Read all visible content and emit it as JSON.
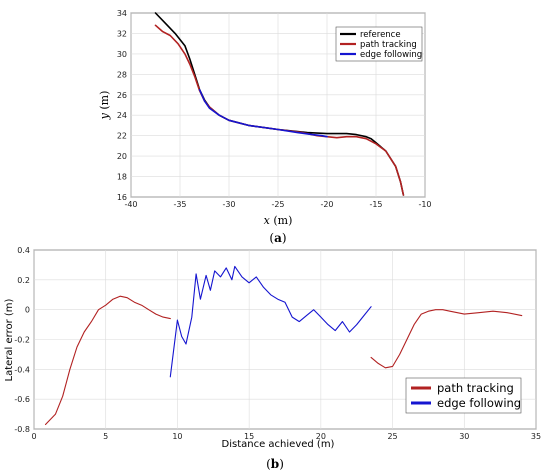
{
  "chart_data": [
    {
      "id": "a",
      "type": "line",
      "caption": "(a)",
      "xlabel": "x (m)",
      "ylabel": "y (m)",
      "xlim": [
        -40,
        -10
      ],
      "ylim": [
        16,
        34
      ],
      "xticks": [
        -40,
        -35,
        -30,
        -25,
        -20,
        -15,
        -10
      ],
      "yticks": [
        16,
        18,
        20,
        22,
        24,
        26,
        28,
        30,
        32,
        34
      ],
      "grid": true,
      "legend_position": "top-right",
      "colors": {
        "reference": "#000000",
        "path_tracking": "#b22222",
        "edge_following": "#1515d0"
      },
      "series": [
        {
          "name": "reference",
          "color": "#000000",
          "x": [
            -37.5,
            -36.5,
            -35.5,
            -34.5,
            -34.0,
            -33.5,
            -33.0,
            -32.5,
            -32.0,
            -31.0,
            -30.0,
            -28.0,
            -25.0,
            -22.0,
            -20.0,
            -18.0,
            -17.0,
            -16.0,
            -15.5,
            -15.0,
            -14.0,
            -13.0,
            -12.5,
            -12.2
          ],
          "y": [
            34.0,
            33.0,
            32.0,
            30.8,
            29.5,
            28.0,
            26.5,
            25.5,
            24.8,
            24.0,
            23.5,
            23.0,
            22.6,
            22.3,
            22.2,
            22.2,
            22.1,
            21.9,
            21.7,
            21.3,
            20.5,
            19.0,
            17.5,
            16.2
          ]
        },
        {
          "name": "path tracking",
          "color": "#b22222",
          "x": [
            -37.5,
            -36.8,
            -36.0,
            -35.2,
            -34.5,
            -34.0,
            -33.5,
            -33.0,
            -32.5,
            -32.0,
            -31.0,
            -30.0,
            -28.0,
            -25.0,
            -22.5,
            -21.0,
            -20.0,
            -19.0,
            -18.0,
            -17.0,
            -16.0,
            -15.0,
            -14.0,
            -13.0,
            -12.5,
            -12.2
          ],
          "y": [
            32.8,
            32.2,
            31.8,
            31.0,
            30.0,
            29.0,
            27.8,
            26.4,
            25.4,
            24.8,
            24.0,
            23.5,
            23.0,
            22.6,
            22.3,
            22.0,
            21.9,
            21.8,
            21.9,
            21.9,
            21.7,
            21.2,
            20.5,
            19.0,
            17.5,
            16.2
          ]
        },
        {
          "name": "edge following",
          "color": "#1515d0",
          "x": [
            -33.0,
            -32.5,
            -32.0,
            -31.0,
            -30.0,
            -28.0,
            -25.0,
            -23.0,
            -21.5,
            -20.5,
            -20.0
          ],
          "y": [
            26.5,
            25.4,
            24.7,
            24.0,
            23.5,
            23.0,
            22.6,
            22.3,
            22.1,
            22.0,
            21.9
          ]
        }
      ]
    },
    {
      "id": "b",
      "type": "line",
      "caption": "(b)",
      "xlabel": "Distance achieved (m)",
      "ylabel": "Lateral error (m)",
      "xlim": [
        0,
        35
      ],
      "ylim": [
        -0.8,
        0.4
      ],
      "xticks": [
        0,
        5,
        10,
        15,
        20,
        25,
        30,
        35
      ],
      "yticks": [
        -0.8,
        -0.6,
        -0.4,
        -0.2,
        0,
        0.2,
        0.4
      ],
      "grid": true,
      "legend_position": "bottom-right",
      "series": [
        {
          "name": "path tracking",
          "color": "#b22222",
          "x": [
            0.8,
            1.5,
            2.0,
            2.5,
            3.0,
            3.5,
            4.0,
            4.5,
            5.0,
            5.5,
            6.0,
            6.5,
            7.0,
            7.5,
            8.0,
            8.5,
            9.0,
            9.5
          ],
          "y": [
            -0.77,
            -0.7,
            -0.58,
            -0.4,
            -0.25,
            -0.15,
            -0.08,
            0.0,
            0.03,
            0.07,
            0.09,
            0.08,
            0.05,
            0.03,
            0.0,
            -0.03,
            -0.05,
            -0.06
          ]
        },
        {
          "name": "path tracking",
          "color": "#b22222",
          "x": [
            23.5,
            24.0,
            24.5,
            25.0,
            25.5,
            26.0,
            26.5,
            27.0,
            27.5,
            28.0,
            28.5,
            29.0,
            30.0,
            31.0,
            32.0,
            33.0,
            34.0
          ],
          "y": [
            -0.32,
            -0.36,
            -0.39,
            -0.38,
            -0.3,
            -0.2,
            -0.1,
            -0.03,
            -0.01,
            0.0,
            0.0,
            -0.01,
            -0.03,
            -0.02,
            -0.01,
            -0.02,
            -0.04
          ]
        },
        {
          "name": "edge following",
          "color": "#1515d0",
          "x": [
            9.5,
            9.7,
            10.0,
            10.3,
            10.6,
            11.0,
            11.3,
            11.6,
            12.0,
            12.3,
            12.6,
            13.0,
            13.4,
            13.8,
            14.0,
            14.5,
            15.0,
            15.5,
            16.0,
            16.5,
            17.0,
            17.5,
            18.0,
            18.5,
            19.0,
            19.5,
            20.0,
            20.5,
            21.0,
            21.5,
            22.0,
            22.5,
            23.0,
            23.5
          ],
          "y": [
            -0.45,
            -0.3,
            -0.07,
            -0.18,
            -0.23,
            -0.05,
            0.24,
            0.07,
            0.23,
            0.13,
            0.26,
            0.22,
            0.28,
            0.2,
            0.29,
            0.22,
            0.18,
            0.22,
            0.15,
            0.1,
            0.07,
            0.05,
            -0.05,
            -0.08,
            -0.04,
            0.0,
            -0.05,
            -0.1,
            -0.14,
            -0.08,
            -0.15,
            -0.1,
            -0.04,
            0.02
          ]
        }
      ]
    }
  ],
  "labels": {
    "a": {
      "caption": "(a)",
      "xlabel_var": "x",
      "xlabel_unit": " (m)",
      "ylabel_var": "y",
      "ylabel_unit": " (m)"
    },
    "b": {
      "caption": "(b)",
      "xlabel": "Distance achieved (m)",
      "ylabel": "Lateral error (m)"
    }
  },
  "legend_a": [
    "reference",
    "path tracking",
    "edge following"
  ],
  "legend_b": [
    "path tracking",
    "edge following"
  ]
}
